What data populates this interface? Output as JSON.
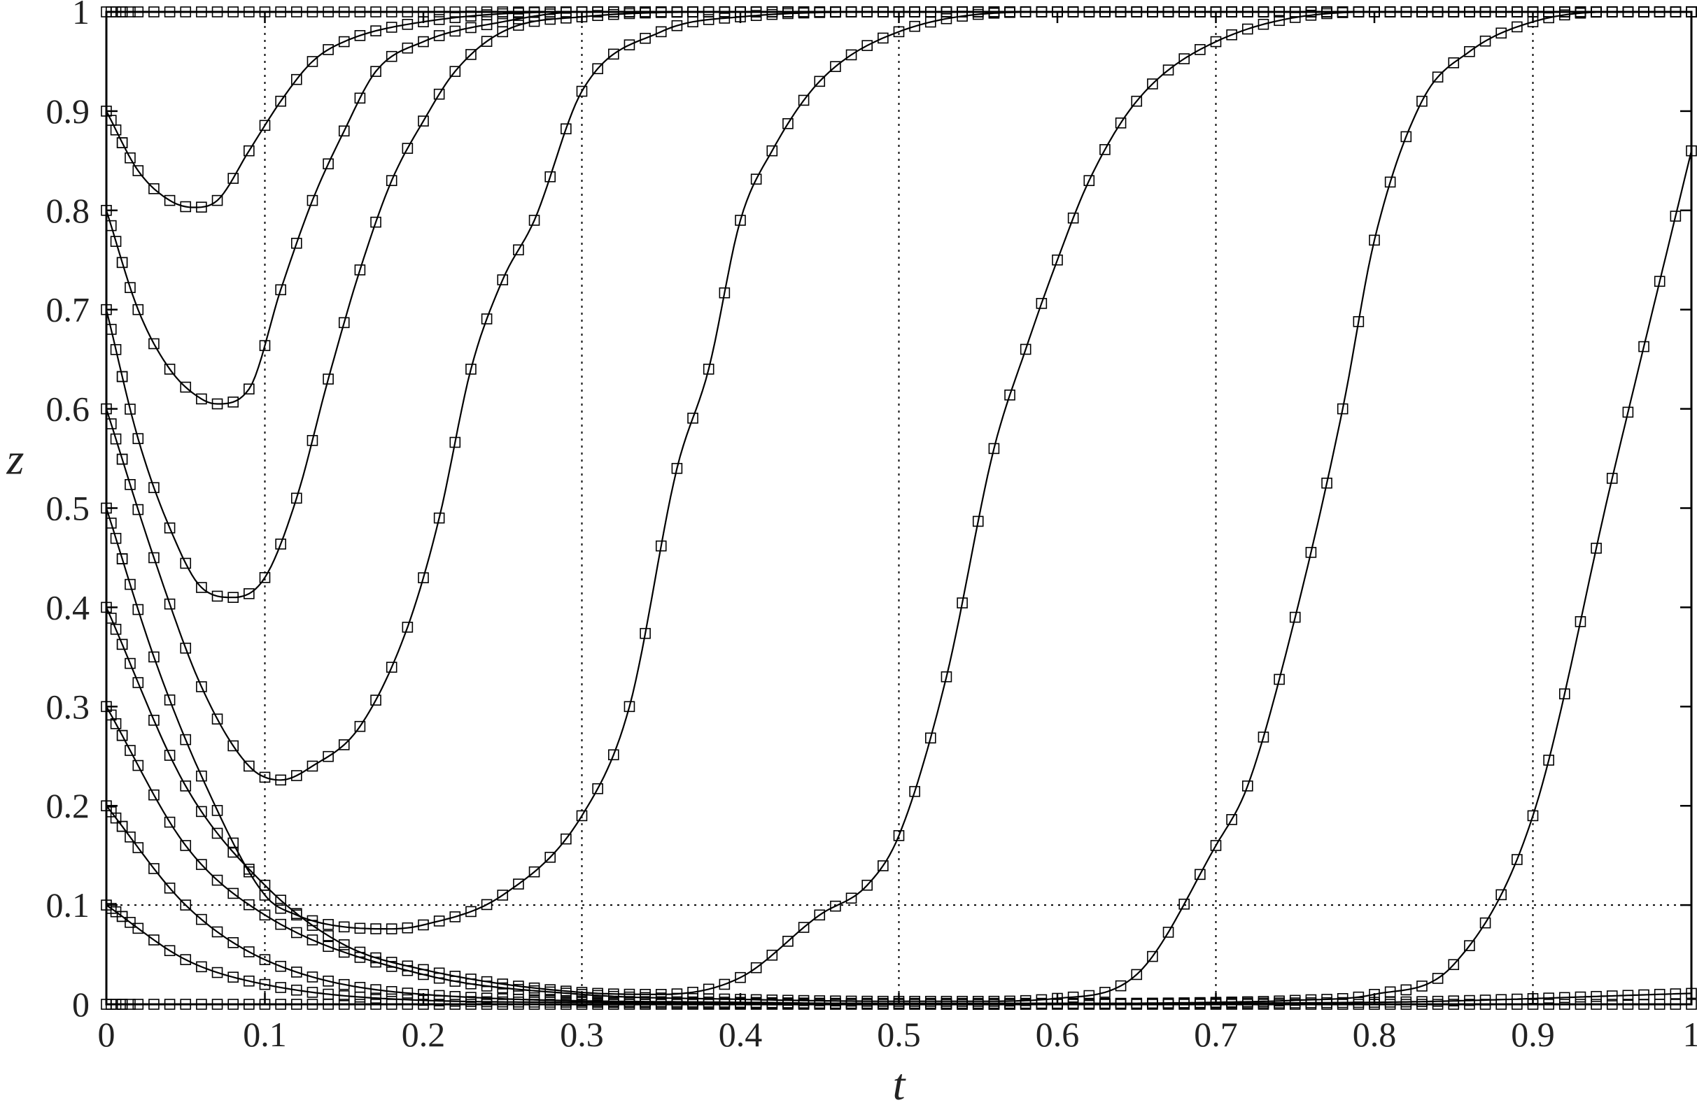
{
  "chart_data": {
    "type": "line",
    "xlabel": "t",
    "ylabel": "z",
    "xlim": [
      0,
      1
    ],
    "ylim": [
      0,
      1
    ],
    "x_ticks": [
      "0",
      "0.1",
      "0.2",
      "0.3",
      "0.4",
      "0.5",
      "0.6",
      "0.7",
      "0.8",
      "0.9",
      "1"
    ],
    "y_ticks": [
      "0",
      "0.1",
      "0.2",
      "0.3",
      "0.4",
      "0.5",
      "0.6",
      "0.7",
      "0.8",
      "0.9",
      "1"
    ],
    "reference_lines": {
      "vertical_dotted_x": [
        0.1,
        0.3,
        0.5,
        0.7,
        0.9
      ],
      "horizontal_dotted_y": [
        0.1
      ]
    },
    "marker": "square",
    "line_color": "#000000",
    "series": [
      {
        "x": [
          0,
          0.05,
          0.1,
          0.2,
          0.4,
          0.6,
          0.8,
          1.0
        ],
        "y": [
          0.0,
          0.0,
          0.0,
          0.0,
          0.0,
          0.0,
          0.0,
          0.0
        ]
      },
      {
        "x": [
          0,
          0.05,
          0.1,
          0.2,
          0.3,
          0.4,
          0.6,
          0.8,
          1.0
        ],
        "y": [
          0.1,
          0.045,
          0.02,
          0.004,
          0.002,
          0.001,
          0.001,
          0.002,
          0.011
        ]
      },
      {
        "x": [
          0,
          0.05,
          0.1,
          0.2,
          0.4,
          0.55,
          0.65,
          0.7,
          0.75,
          0.8,
          0.85,
          0.9,
          0.95,
          1.0
        ],
        "y": [
          0.2,
          0.1,
          0.045,
          0.01,
          0.002,
          0.0,
          0.001,
          0.002,
          0.004,
          0.01,
          0.04,
          0.19,
          0.53,
          0.86
        ]
      },
      {
        "x": [
          0,
          0.05,
          0.1,
          0.2,
          0.3,
          0.4,
          0.5,
          0.55,
          0.6,
          0.65,
          0.7,
          0.72,
          0.75,
          0.78,
          0.8,
          0.83,
          0.86,
          0.9,
          0.95,
          1.0
        ],
        "y": [
          0.3,
          0.16,
          0.09,
          0.03,
          0.01,
          0.005,
          0.003,
          0.003,
          0.006,
          0.03,
          0.16,
          0.22,
          0.39,
          0.6,
          0.77,
          0.91,
          0.96,
          0.99,
          1.0,
          1.0
        ]
      },
      {
        "x": [
          0,
          0.05,
          0.1,
          0.15,
          0.2,
          0.3,
          0.35,
          0.4,
          0.45,
          0.48,
          0.5,
          0.53,
          0.56,
          0.58,
          0.6,
          0.62,
          0.65,
          0.7,
          0.8,
          1.0
        ],
        "y": [
          0.4,
          0.22,
          0.12,
          0.06,
          0.035,
          0.012,
          0.01,
          0.027,
          0.09,
          0.12,
          0.17,
          0.33,
          0.56,
          0.66,
          0.75,
          0.83,
          0.91,
          0.97,
          1.0,
          1.0
        ]
      },
      {
        "x": [
          0,
          0.03,
          0.06,
          0.1,
          0.12,
          0.15,
          0.18,
          0.2,
          0.25,
          0.3,
          0.33,
          0.36,
          0.38,
          0.4,
          0.42,
          0.45,
          0.5,
          0.6,
          0.8,
          1.0
        ],
        "y": [
          0.5,
          0.35,
          0.23,
          0.11,
          0.09,
          0.078,
          0.076,
          0.08,
          0.11,
          0.19,
          0.3,
          0.54,
          0.64,
          0.79,
          0.86,
          0.93,
          0.98,
          1.0,
          1.0,
          1.0
        ]
      },
      {
        "x": [
          0,
          0.03,
          0.06,
          0.09,
          0.11,
          0.13,
          0.16,
          0.19,
          0.21,
          0.23,
          0.25,
          0.27,
          0.3,
          0.35,
          0.4,
          0.5,
          0.7,
          1.0
        ],
        "y": [
          0.6,
          0.45,
          0.32,
          0.24,
          0.226,
          0.24,
          0.28,
          0.38,
          0.49,
          0.64,
          0.73,
          0.79,
          0.92,
          0.98,
          0.995,
          1.0,
          1.0,
          1.0
        ]
      },
      {
        "x": [
          0,
          0.02,
          0.04,
          0.06,
          0.08,
          0.1,
          0.12,
          0.14,
          0.16,
          0.18,
          0.2,
          0.22,
          0.25,
          0.3,
          0.4,
          0.6,
          1.0
        ],
        "y": [
          0.7,
          0.57,
          0.48,
          0.42,
          0.41,
          0.43,
          0.51,
          0.63,
          0.74,
          0.83,
          0.89,
          0.94,
          0.98,
          0.995,
          1.0,
          1.0,
          1.0
        ]
      },
      {
        "x": [
          0,
          0.02,
          0.04,
          0.06,
          0.07,
          0.09,
          0.11,
          0.13,
          0.15,
          0.17,
          0.2,
          0.25,
          0.3,
          0.4,
          0.6,
          1.0
        ],
        "y": [
          0.8,
          0.7,
          0.64,
          0.61,
          0.605,
          0.62,
          0.72,
          0.81,
          0.88,
          0.94,
          0.97,
          0.99,
          1.0,
          1.0,
          1.0,
          1.0
        ]
      },
      {
        "x": [
          0,
          0.02,
          0.04,
          0.055,
          0.07,
          0.09,
          0.11,
          0.13,
          0.15,
          0.2,
          0.3,
          0.5,
          1.0
        ],
        "y": [
          0.9,
          0.84,
          0.81,
          0.803,
          0.81,
          0.86,
          0.91,
          0.95,
          0.97,
          0.99,
          1.0,
          1.0,
          1.0
        ]
      },
      {
        "x": [
          0,
          0.05,
          0.1,
          0.3,
          0.5,
          0.8,
          1.0
        ],
        "y": [
          1.0,
          1.0,
          1.0,
          1.0,
          1.0,
          1.0,
          1.0
        ]
      }
    ]
  }
}
